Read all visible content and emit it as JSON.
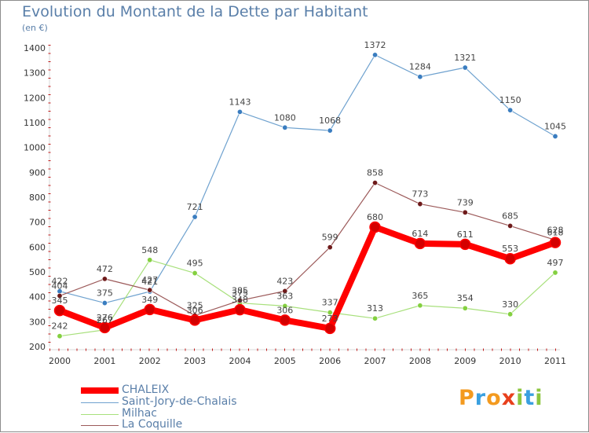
{
  "chart_data": {
    "type": "line",
    "title": "Evolution du Montant de la Dette par Habitant",
    "subtitle": "(en €)",
    "x": [
      "2000",
      "2001",
      "2002",
      "2003",
      "2004",
      "2005",
      "2006",
      "2007",
      "2008",
      "2009",
      "2010",
      "2011"
    ],
    "ylim": [
      200,
      1400
    ],
    "yticks": [
      200,
      300,
      400,
      500,
      600,
      700,
      800,
      900,
      1000,
      1100,
      1200,
      1300,
      1400
    ],
    "grid": false,
    "legend_position": "bottom-left",
    "series": [
      {
        "name": "CHALEIX",
        "color": "#ff0000",
        "point_color": "#d40000",
        "values": [
          345,
          276,
          349,
          306,
          348,
          306,
          273,
          680,
          614,
          611,
          553,
          618
        ]
      },
      {
        "name": "Saint-Jory-de-Chalais",
        "color": "#6fa2cf",
        "point_color": "#3a7dc0",
        "values": [
          422,
          375,
          421,
          721,
          1143,
          1080,
          1068,
          1372,
          1284,
          1321,
          1150,
          1045
        ]
      },
      {
        "name": "Milhac",
        "color": "#a8e07c",
        "point_color": "#84d040",
        "values": [
          242,
          267,
          548,
          495,
          375,
          363,
          337,
          313,
          365,
          354,
          330,
          497
        ]
      },
      {
        "name": "La Coquille",
        "color": "#9c5a5a",
        "point_color": "#6e1a1a",
        "values": [
          404,
          472,
          427,
          325,
          385,
          423,
          599,
          858,
          773,
          739,
          685,
          628
        ]
      }
    ]
  },
  "legend": {
    "items": [
      {
        "label": "CHALEIX"
      },
      {
        "label": "Saint-Jory-de-Chalais"
      },
      {
        "label": "Milhac"
      },
      {
        "label": "La Coquille"
      }
    ]
  },
  "brand": {
    "name": "Proxiti",
    "letters": [
      "P",
      "r",
      "o",
      "x",
      "i",
      "t",
      "i"
    ],
    "colors": [
      "#f39a1f",
      "#3aa0e0",
      "#f39a1f",
      "#e8401c",
      "#8cc63f",
      "#3aa0e0",
      "#8cc63f"
    ]
  }
}
